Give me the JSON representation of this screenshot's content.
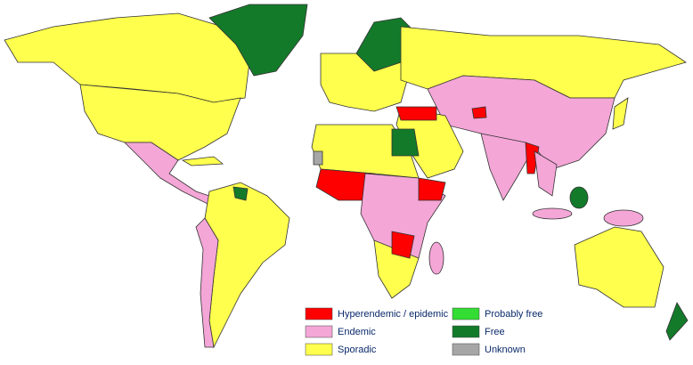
{
  "legend": {
    "items": [
      {
        "label": "Hyperendemic / epidemic",
        "color": "#ff0000"
      },
      {
        "label": "Endemic",
        "color": "#f4a6d7"
      },
      {
        "label": "Sporadic",
        "color": "#ffff4d"
      },
      {
        "label": "Probably free",
        "color": "#33dd33"
      },
      {
        "label": "Free",
        "color": "#137a2a"
      },
      {
        "label": "Unknown",
        "color": "#a6a6a6"
      }
    ]
  }
}
